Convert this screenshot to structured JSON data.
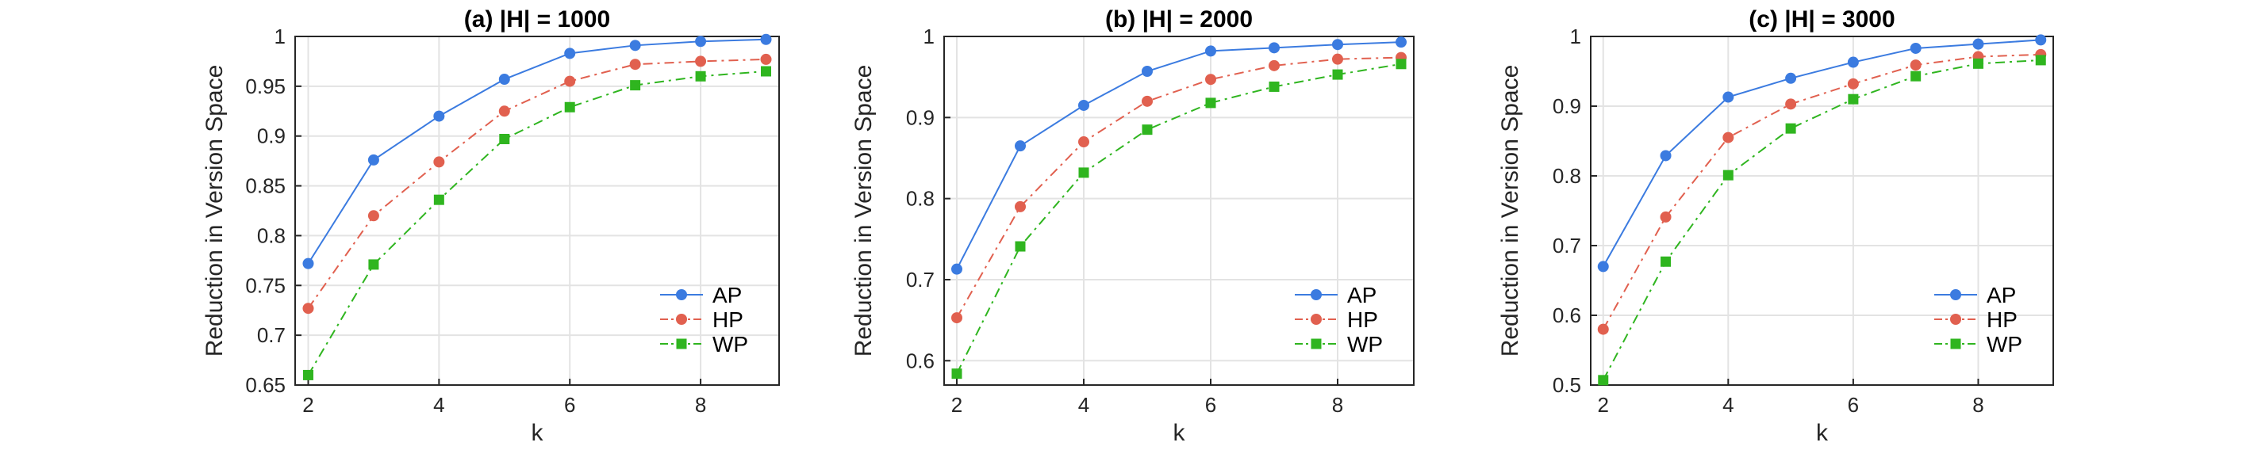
{
  "chart_data": [
    {
      "type": "line",
      "title": "(a) |H| = 1000",
      "xlabel": "k",
      "ylabel": "Reduction in Version Space",
      "xlim": [
        1.8,
        9.2
      ],
      "ylim": [
        0.65,
        1
      ],
      "xticks": [
        2,
        4,
        6,
        8
      ],
      "xtick_labels": [
        "2",
        "4",
        "6",
        "8"
      ],
      "yticks": [
        0.65,
        0.7,
        0.75,
        0.8,
        0.85,
        0.9,
        0.95,
        1
      ],
      "ytick_labels": [
        "0.65",
        "0.7",
        "0.75",
        "0.8",
        "0.85",
        "0.9",
        "0.95",
        "1"
      ],
      "grid": true,
      "legend_position": "bottom-right",
      "x": [
        2,
        3,
        4,
        5,
        6,
        7,
        8,
        9
      ],
      "series": [
        {
          "name": "AP",
          "values": [
            0.772,
            0.876,
            0.92,
            0.957,
            0.983,
            0.991,
            0.995,
            0.997
          ]
        },
        {
          "name": "HP",
          "values": [
            0.727,
            0.82,
            0.874,
            0.925,
            0.955,
            0.972,
            0.975,
            0.977
          ]
        },
        {
          "name": "WP",
          "values": [
            0.66,
            0.771,
            0.836,
            0.897,
            0.929,
            0.951,
            0.96,
            0.965
          ]
        }
      ]
    },
    {
      "type": "line",
      "title": "(b) |H| = 2000",
      "xlabel": "k",
      "ylabel": "Reduction in Version Space",
      "xlim": [
        1.8,
        9.2
      ],
      "ylim": [
        0.57,
        1
      ],
      "xticks": [
        2,
        4,
        6,
        8
      ],
      "xtick_labels": [
        "2",
        "4",
        "6",
        "8"
      ],
      "yticks": [
        0.6,
        0.7,
        0.8,
        0.9,
        1
      ],
      "ytick_labels": [
        "0.6",
        "0.7",
        "0.8",
        "0.9",
        "1"
      ],
      "grid": true,
      "legend_position": "bottom-right",
      "x": [
        2,
        3,
        4,
        5,
        6,
        7,
        8,
        9
      ],
      "series": [
        {
          "name": "AP",
          "values": [
            0.713,
            0.865,
            0.915,
            0.957,
            0.982,
            0.986,
            0.99,
            0.993
          ]
        },
        {
          "name": "HP",
          "values": [
            0.653,
            0.79,
            0.87,
            0.92,
            0.947,
            0.964,
            0.972,
            0.974
          ]
        },
        {
          "name": "WP",
          "values": [
            0.584,
            0.741,
            0.832,
            0.885,
            0.918,
            0.938,
            0.953,
            0.966
          ]
        }
      ]
    },
    {
      "type": "line",
      "title": "(c) |H| = 3000",
      "xlabel": "k",
      "ylabel": "Reduction in Version Space",
      "xlim": [
        1.8,
        9.2
      ],
      "ylim": [
        0.5,
        1
      ],
      "xticks": [
        2,
        4,
        6,
        8
      ],
      "xtick_labels": [
        "2",
        "4",
        "6",
        "8"
      ],
      "yticks": [
        0.5,
        0.6,
        0.7,
        0.8,
        0.9,
        1
      ],
      "ytick_labels": [
        "0.5",
        "0.6",
        "0.7",
        "0.8",
        "0.9",
        "1"
      ],
      "grid": true,
      "legend_position": "bottom-right",
      "x": [
        2,
        3,
        4,
        5,
        6,
        7,
        8,
        9
      ],
      "series": [
        {
          "name": "AP",
          "values": [
            0.67,
            0.829,
            0.913,
            0.94,
            0.963,
            0.983,
            0.989,
            0.995
          ]
        },
        {
          "name": "HP",
          "values": [
            0.58,
            0.741,
            0.855,
            0.903,
            0.932,
            0.959,
            0.971,
            0.974
          ]
        },
        {
          "name": "WP",
          "values": [
            0.507,
            0.677,
            0.801,
            0.868,
            0.91,
            0.943,
            0.961,
            0.966
          ]
        }
      ]
    }
  ],
  "series_style": {
    "AP": {
      "color": "#3B7BE0",
      "marker": "circle",
      "dash": "solid"
    },
    "HP": {
      "color": "#E1604F",
      "marker": "circle",
      "dash": "dash-dot"
    },
    "WP": {
      "color": "#2FB51F",
      "marker": "square",
      "dash": "dash-dot"
    }
  }
}
